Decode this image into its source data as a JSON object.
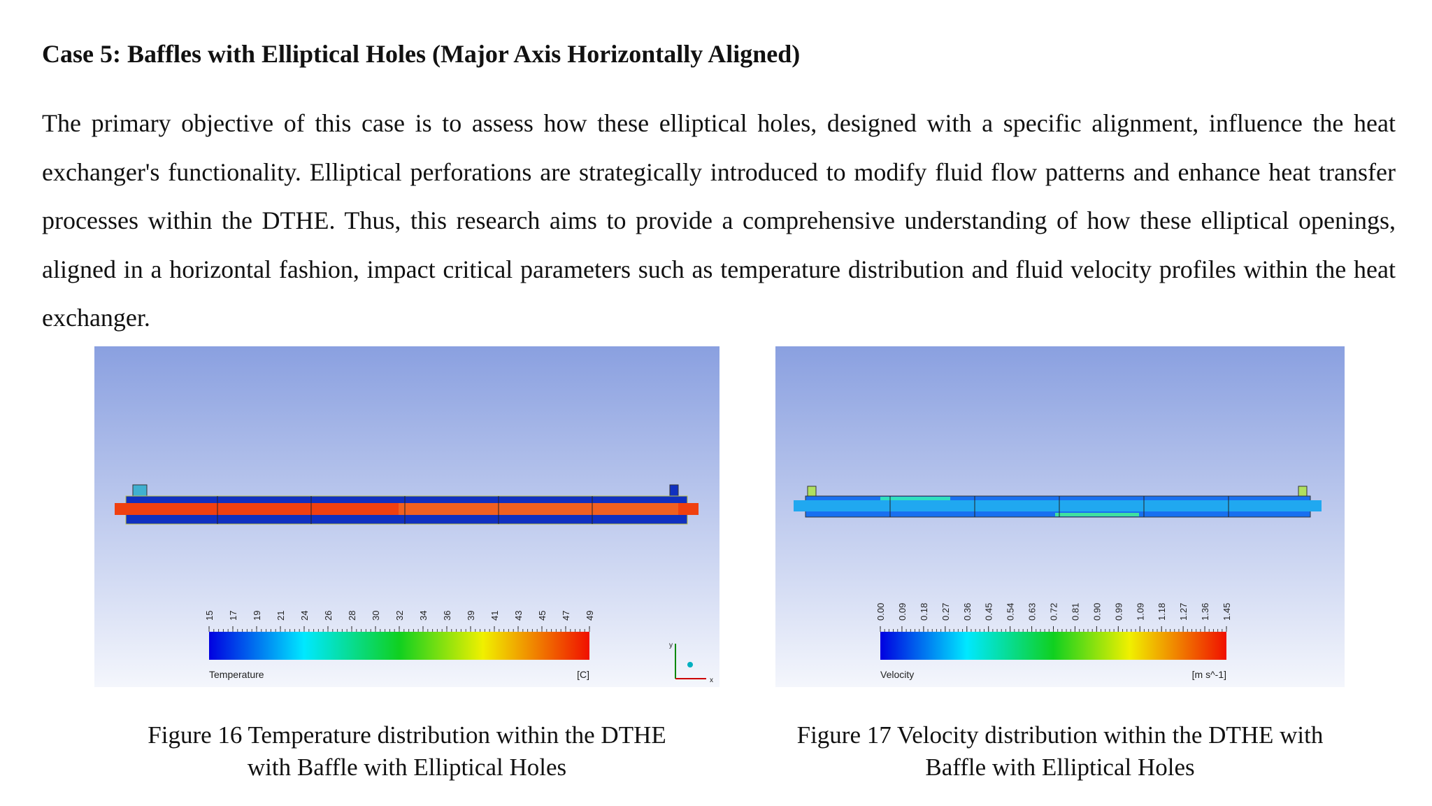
{
  "heading": "Case 5: Baffles with Elliptical Holes (Major Axis Horizontally Aligned)",
  "paragraph": "The primary objective of this case is to assess how these elliptical holes, designed with a specific alignment, influence the heat exchanger's functionality. Elliptical perforations are strategically introduced to modify fluid flow patterns and enhance heat transfer processes within the DTHE. Thus, this research aims to provide a comprehensive understanding of how these elliptical openings, aligned in a horizontal fashion, impact critical parameters such as temperature distribution and fluid velocity profiles within the heat exchanger.",
  "figures": [
    {
      "legend": {
        "title": "Temperature",
        "unit": "[C]",
        "ticks": [
          "15",
          "17",
          "19",
          "21",
          "24",
          "26",
          "28",
          "30",
          "32",
          "34",
          "36",
          "39",
          "41",
          "43",
          "45",
          "47",
          "49"
        ]
      },
      "axes": {
        "x": "x",
        "y": "y"
      },
      "caption": [
        "Figure 16 Temperature distribution within the DTHE",
        "with Baffle with Elliptical Holes"
      ]
    },
    {
      "legend": {
        "title": "Velocity",
        "unit": "[m s^-1]",
        "ticks": [
          "0.00",
          "0.09",
          "0.18",
          "0.27",
          "0.36",
          "0.45",
          "0.54",
          "0.63",
          "0.72",
          "0.81",
          "0.90",
          "0.99",
          "1.09",
          "1.18",
          "1.27",
          "1.36",
          "1.45"
        ]
      },
      "caption": [
        "Figure 17 Velocity distribution within the DTHE with",
        "Baffle with Elliptical Holes"
      ]
    }
  ]
}
